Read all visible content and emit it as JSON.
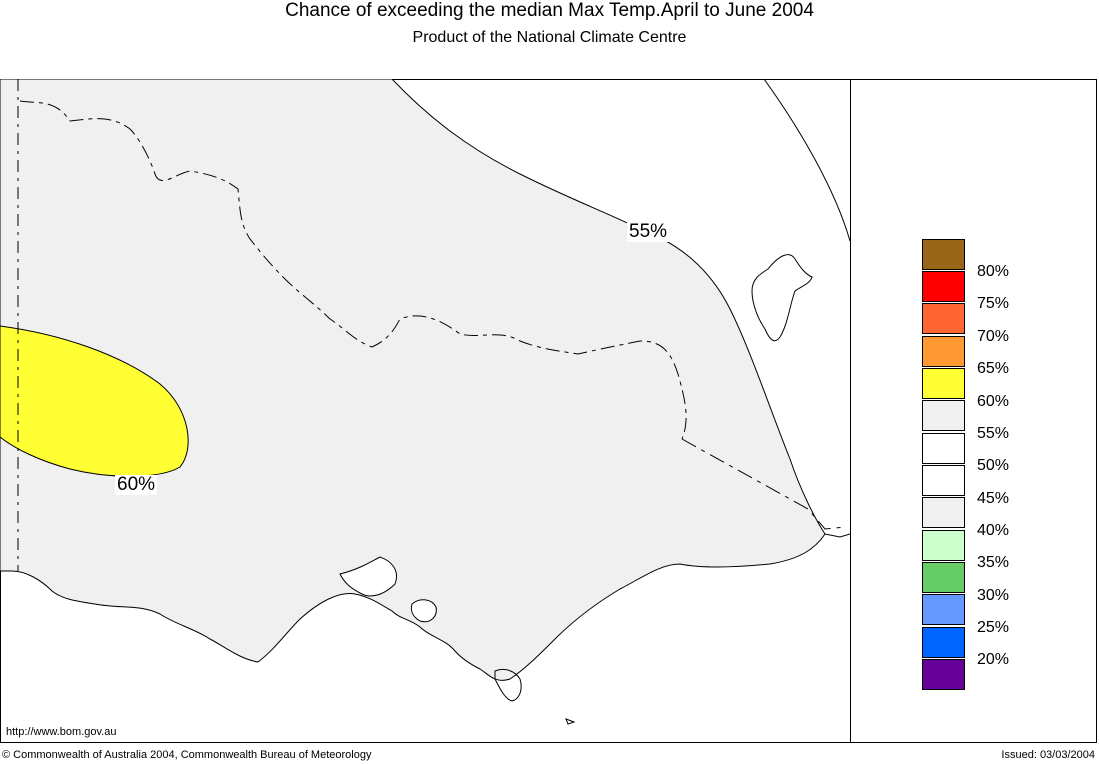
{
  "title": "Chance of exceeding the median Max Temp.April to June 2004",
  "subtitle": "Product of the National Climate Centre",
  "map": {
    "labels": {
      "contour_55": "55%",
      "contour_60": "60%"
    },
    "colors": {
      "region_55": "#f0f0f0",
      "region_60": "#ffff33",
      "ocean": "#ffffff"
    }
  },
  "legend": {
    "swatches": [
      {
        "color": "#996619"
      },
      {
        "color": "#ff0000"
      },
      {
        "color": "#ff6633"
      },
      {
        "color": "#ff9933"
      },
      {
        "color": "#ffff33"
      },
      {
        "color": "#f0f0f0"
      },
      {
        "color": "#ffffff"
      },
      {
        "color": "#ffffff"
      },
      {
        "color": "#f0f0f0"
      },
      {
        "color": "#ccffcc"
      },
      {
        "color": "#66cc66"
      },
      {
        "color": "#6699ff"
      },
      {
        "color": "#0066ff"
      },
      {
        "color": "#660099"
      }
    ],
    "labels": [
      "80%",
      "75%",
      "70%",
      "65%",
      "60%",
      "55%",
      "50%",
      "45%",
      "40%",
      "35%",
      "30%",
      "25%",
      "20%"
    ]
  },
  "footer": {
    "url": "http://www.bom.gov.au",
    "copyright": "© Commonwealth of Australia 2004, Commonwealth Bureau of Meteorology",
    "issued": "Issued: 03/03/2004"
  }
}
